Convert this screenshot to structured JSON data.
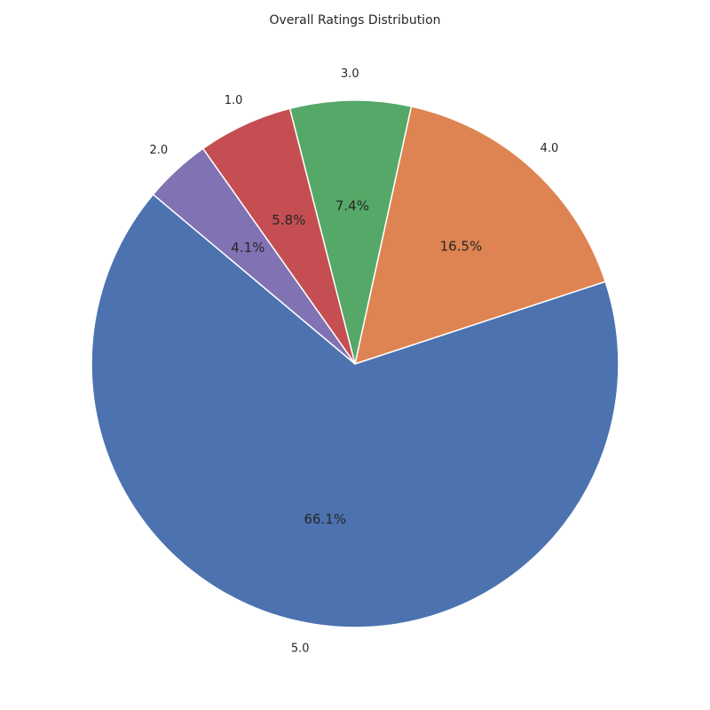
{
  "chart_data": {
    "type": "pie",
    "title": "Overall Ratings Distribution",
    "labels": [
      "5.0",
      "4.0",
      "3.0",
      "1.0",
      "2.0"
    ],
    "values": [
      66.1,
      16.5,
      7.4,
      5.8,
      4.1
    ],
    "percent_labels": [
      "66.1%",
      "16.5%",
      "7.4%",
      "5.8%",
      "4.1%"
    ],
    "colors": [
      "#4c72b0",
      "#dd8452",
      "#55a868",
      "#c44e52",
      "#8172b3"
    ],
    "start_angle_deg": 140,
    "direction": "counterclockwise",
    "legend": "none"
  }
}
